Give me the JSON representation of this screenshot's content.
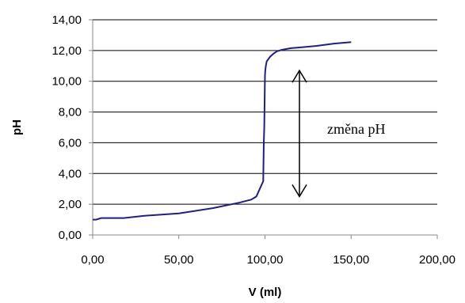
{
  "chart_data": {
    "type": "line",
    "title": "",
    "xlabel": "V (ml)",
    "ylabel": "pH",
    "xlim": [
      0,
      200
    ],
    "ylim": [
      0,
      14
    ],
    "xticks": [
      "0,00",
      "50,00",
      "100,00",
      "150,00",
      "200,00"
    ],
    "yticks": [
      "0,00",
      "2,00",
      "4,00",
      "6,00",
      "8,00",
      "10,00",
      "12,00",
      "14,00"
    ],
    "grid": "horizontal",
    "legend": "none",
    "series": [
      {
        "color": "#1f1f8c",
        "x": [
          0,
          2,
          5,
          10,
          18,
          30,
          50,
          70,
          85,
          92,
          95,
          99,
          99.3,
          99.6,
          100,
          100.2,
          100.5,
          101,
          103,
          105,
          107,
          110,
          115,
          120,
          130,
          140,
          150
        ],
        "y": [
          1.0,
          1.0,
          1.1,
          1.1,
          1.1,
          1.25,
          1.4,
          1.75,
          2.1,
          2.3,
          2.5,
          3.5,
          6.0,
          7.0,
          10.4,
          10.7,
          11.0,
          11.3,
          11.6,
          11.8,
          11.95,
          12.05,
          12.15,
          12.2,
          12.3,
          12.45,
          12.55
        ]
      }
    ],
    "annotations": [
      {
        "text": "změna pH",
        "arrow_x": 120,
        "arrow_y_from": 2.5,
        "arrow_y_to": 10.7
      }
    ]
  }
}
